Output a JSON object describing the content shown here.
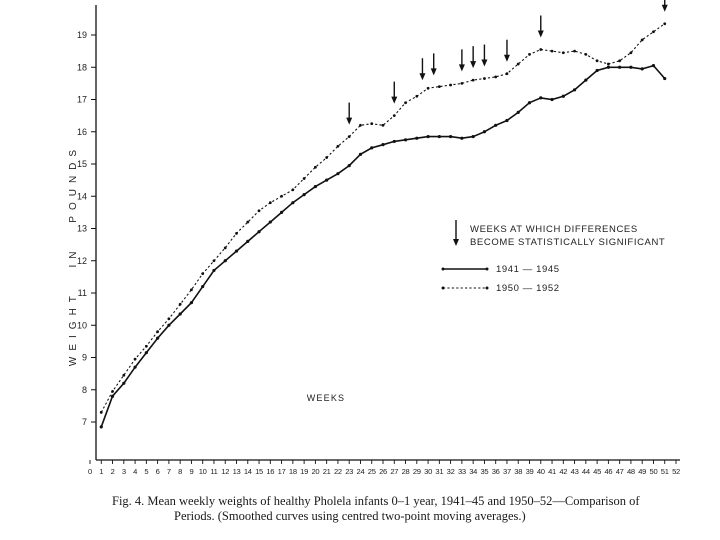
{
  "chart_data": {
    "type": "line",
    "xlabel": "WEEKS",
    "ylabel": "WEIGHT IN POUNDS",
    "xlim": [
      0,
      52
    ],
    "ylim": [
      6.5,
      19.8
    ],
    "x_ticks": [
      0,
      1,
      2,
      3,
      4,
      5,
      6,
      7,
      8,
      9,
      10,
      11,
      12,
      13,
      14,
      15,
      16,
      17,
      18,
      19,
      20,
      21,
      22,
      23,
      24,
      25,
      26,
      27,
      28,
      29,
      30,
      31,
      32,
      33,
      34,
      35,
      36,
      37,
      38,
      39,
      40,
      41,
      42,
      43,
      44,
      45,
      46,
      47,
      48,
      49,
      50,
      51,
      52
    ],
    "y_ticks": [
      7,
      8,
      9,
      10,
      11,
      12,
      13,
      14,
      15,
      16,
      17,
      18,
      19
    ],
    "legend": {
      "arrow_note_line1": "WEEKS AT WHICH DIFFERENCES",
      "arrow_note_line2": "BECOME STATISTICALLY SIGNIFICANT",
      "placement": "right"
    },
    "series": [
      {
        "name": "1941 — 1945",
        "style": "solid",
        "x": [
          1,
          2,
          3,
          4,
          5,
          6,
          7,
          8,
          9,
          10,
          11,
          12,
          13,
          14,
          15,
          16,
          17,
          18,
          19,
          20,
          21,
          22,
          23,
          24,
          25,
          26,
          27,
          28,
          29,
          30,
          31,
          32,
          33,
          34,
          35,
          36,
          37,
          38,
          39,
          40,
          41,
          42,
          43,
          44,
          45,
          46,
          47,
          48,
          49,
          50,
          51
        ],
        "values": [
          6.85,
          7.8,
          8.2,
          8.7,
          9.15,
          9.6,
          10.0,
          10.35,
          10.7,
          11.2,
          11.7,
          12.0,
          12.3,
          12.6,
          12.9,
          13.2,
          13.5,
          13.8,
          14.05,
          14.3,
          14.5,
          14.7,
          14.95,
          15.3,
          15.5,
          15.6,
          15.7,
          15.75,
          15.8,
          15.85,
          15.85,
          15.85,
          15.8,
          15.85,
          16.0,
          16.2,
          16.35,
          16.6,
          16.9,
          17.05,
          17.0,
          17.1,
          17.3,
          17.6,
          17.9,
          18.0,
          18.0,
          18.0,
          17.95,
          18.05,
          17.65
        ]
      },
      {
        "name": "1950 — 1952",
        "style": "dashed",
        "x": [
          1,
          2,
          3,
          4,
          5,
          6,
          7,
          8,
          9,
          10,
          11,
          12,
          13,
          14,
          15,
          16,
          17,
          18,
          19,
          20,
          21,
          22,
          23,
          24,
          25,
          26,
          27,
          28,
          29,
          30,
          31,
          32,
          33,
          34,
          35,
          36,
          37,
          38,
          39,
          40,
          41,
          42,
          43,
          44,
          45,
          46,
          47,
          48,
          49,
          50,
          51
        ],
        "values": [
          7.3,
          7.95,
          8.45,
          8.95,
          9.35,
          9.8,
          10.2,
          10.65,
          11.1,
          11.6,
          12.0,
          12.4,
          12.85,
          13.2,
          13.55,
          13.8,
          14.0,
          14.2,
          14.55,
          14.9,
          15.2,
          15.55,
          15.85,
          16.2,
          16.25,
          16.2,
          16.5,
          16.9,
          17.1,
          17.35,
          17.4,
          17.45,
          17.5,
          17.6,
          17.65,
          17.7,
          17.8,
          18.1,
          18.4,
          18.55,
          18.5,
          18.45,
          18.5,
          18.4,
          18.2,
          18.1,
          18.2,
          18.45,
          18.85,
          19.1,
          19.35
        ]
      }
    ],
    "significance_arrows_weeks": [
      23,
      27,
      29.5,
      30.5,
      33,
      34,
      35,
      37,
      40,
      51
    ]
  },
  "caption": {
    "line1": "Fig. 4.  Mean weekly weights of healthy Pholela infants 0–1 year, 1941–45 and 1950–52—Comparison of",
    "line2": "Periods.  (Smoothed curves using centred two-point moving averages.)"
  }
}
